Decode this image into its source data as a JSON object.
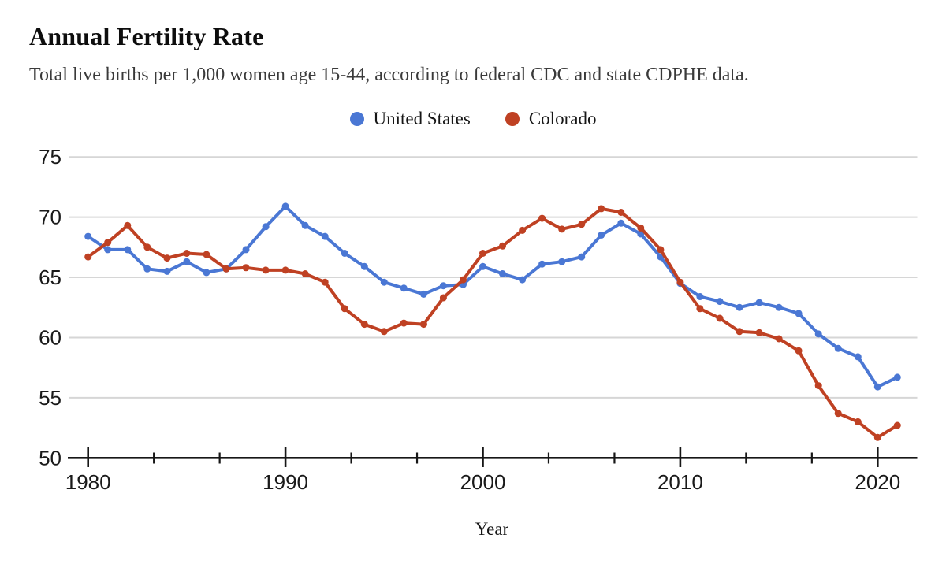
{
  "chart_data": {
    "type": "line",
    "title": "Annual Fertility Rate",
    "subtitle": "Total live births per 1,000 women age 15-44, according to federal CDC and state CDPHE data.",
    "xlabel": "Year",
    "ylabel": "",
    "x": [
      1980,
      1981,
      1982,
      1983,
      1984,
      1985,
      1986,
      1987,
      1988,
      1989,
      1990,
      1991,
      1992,
      1993,
      1994,
      1995,
      1996,
      1997,
      1998,
      1999,
      2000,
      2001,
      2002,
      2003,
      2004,
      2005,
      2006,
      2007,
      2008,
      2009,
      2010,
      2011,
      2012,
      2013,
      2014,
      2015,
      2016,
      2017,
      2018,
      2019,
      2020,
      2021
    ],
    "series": [
      {
        "name": "United States",
        "color": "#4a77d4",
        "values": [
          68.4,
          67.3,
          67.3,
          65.7,
          65.5,
          66.3,
          65.4,
          65.7,
          67.3,
          69.2,
          70.9,
          69.3,
          68.4,
          67.0,
          65.9,
          64.6,
          64.1,
          63.6,
          64.3,
          64.4,
          65.9,
          65.3,
          64.8,
          66.1,
          66.3,
          66.7,
          68.5,
          69.5,
          68.6,
          66.7,
          64.5,
          63.4,
          63.0,
          62.5,
          62.9,
          62.5,
          62.0,
          60.3,
          59.1,
          58.4,
          55.9,
          56.7
        ]
      },
      {
        "name": "Colorado",
        "color": "#bf4123",
        "values": [
          66.7,
          67.9,
          69.3,
          67.5,
          66.6,
          67.0,
          66.9,
          65.7,
          65.8,
          65.6,
          65.6,
          65.3,
          64.6,
          62.4,
          61.1,
          60.5,
          61.2,
          61.1,
          63.3,
          64.8,
          67.0,
          67.6,
          68.9,
          69.9,
          69.0,
          69.4,
          70.7,
          70.4,
          69.1,
          67.3,
          64.6,
          62.4,
          61.6,
          60.5,
          60.4,
          59.9,
          58.9,
          56.0,
          53.7,
          53.0,
          51.7,
          52.7
        ]
      }
    ],
    "ylim": [
      50,
      75
    ],
    "yticks": [
      50,
      55,
      60,
      65,
      70,
      75
    ],
    "xticks_major": [
      1980,
      1990,
      2000,
      2010,
      2020
    ],
    "xticks_minor": [
      1983.333,
      1986.667,
      1993.333,
      1996.667,
      2003.333,
      2006.667,
      2013.333,
      2016.667
    ],
    "grid": "horizontal",
    "legend_position": "top-center",
    "axis_color": "#161616",
    "gridline_color": "#d6d6d6",
    "tick_label_color": "#1a1a1a"
  }
}
